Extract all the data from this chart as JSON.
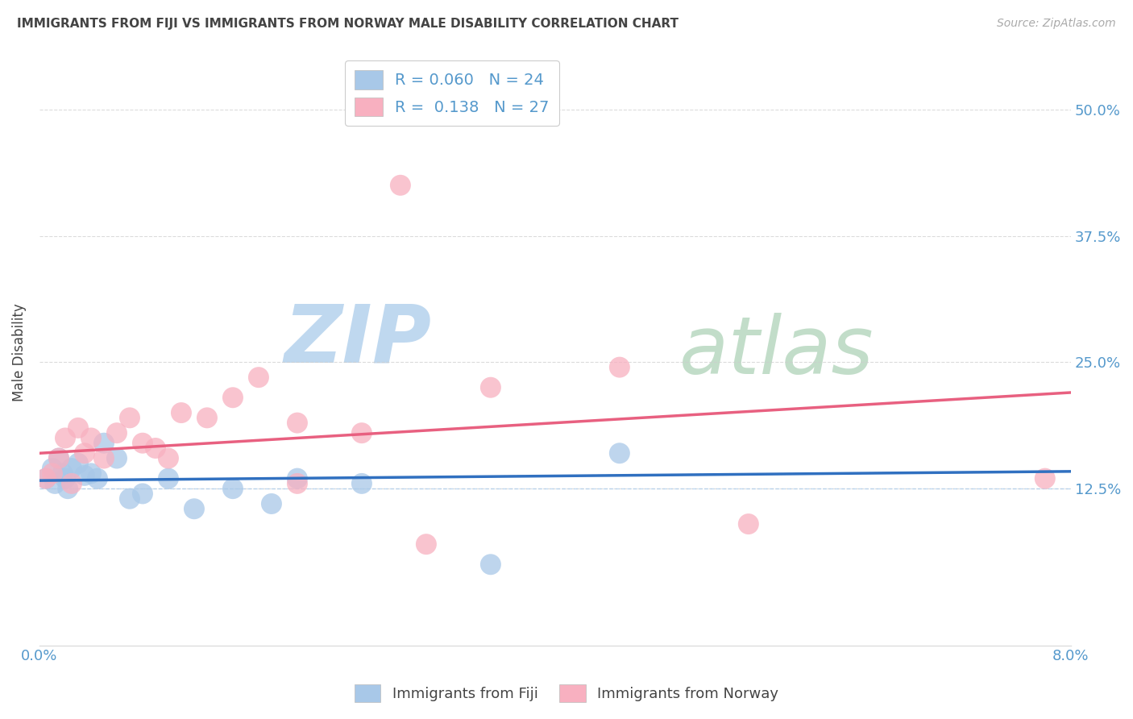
{
  "title": "IMMIGRANTS FROM FIJI VS IMMIGRANTS FROM NORWAY MALE DISABILITY CORRELATION CHART",
  "source": "Source: ZipAtlas.com",
  "ylabel": "Male Disability",
  "xlim": [
    0.0,
    8.0
  ],
  "ylim": [
    -3.0,
    55.0
  ],
  "yticks": [
    0,
    12.5,
    25.0,
    37.5,
    50.0
  ],
  "ytick_labels": [
    "",
    "12.5%",
    "25.0%",
    "37.5%",
    "50.0%"
  ],
  "fiji_R": 0.06,
  "fiji_N": 24,
  "norway_R": 0.138,
  "norway_N": 27,
  "fiji_color": "#a8c8e8",
  "norway_color": "#f8b0c0",
  "fiji_line_color": "#3070c0",
  "norway_line_color": "#e86080",
  "fiji_scatter_x": [
    0.05,
    0.1,
    0.12,
    0.15,
    0.18,
    0.2,
    0.22,
    0.25,
    0.3,
    0.35,
    0.4,
    0.45,
    0.5,
    0.6,
    0.7,
    0.8,
    1.0,
    1.2,
    1.5,
    1.8,
    2.0,
    2.5,
    3.5,
    4.5
  ],
  "fiji_scatter_y": [
    13.5,
    14.5,
    13.0,
    15.5,
    14.0,
    13.5,
    12.5,
    14.5,
    15.0,
    13.8,
    14.0,
    13.5,
    17.0,
    15.5,
    11.5,
    12.0,
    13.5,
    10.5,
    12.5,
    11.0,
    13.5,
    13.0,
    5.0,
    16.0
  ],
  "norway_scatter_x": [
    0.05,
    0.1,
    0.15,
    0.2,
    0.25,
    0.3,
    0.35,
    0.4,
    0.5,
    0.6,
    0.7,
    0.8,
    0.9,
    1.0,
    1.1,
    1.3,
    1.5,
    1.7,
    2.0,
    2.0,
    2.5,
    2.8,
    3.0,
    3.5,
    4.5,
    5.5,
    7.8
  ],
  "norway_scatter_y": [
    13.5,
    14.0,
    15.5,
    17.5,
    13.0,
    18.5,
    16.0,
    17.5,
    15.5,
    18.0,
    19.5,
    17.0,
    16.5,
    15.5,
    20.0,
    19.5,
    21.5,
    23.5,
    19.0,
    13.0,
    18.0,
    42.5,
    7.0,
    22.5,
    24.5,
    9.0,
    13.5
  ],
  "watermark_zip_color": "#c8ddf0",
  "watermark_atlas_color": "#d0e8d0",
  "background_color": "#ffffff",
  "legend_fiji_label": "Immigrants from Fiji",
  "legend_norway_label": "Immigrants from Norway",
  "title_color": "#444444",
  "axis_label_color": "#5599cc",
  "grid_color": "#cccccc"
}
